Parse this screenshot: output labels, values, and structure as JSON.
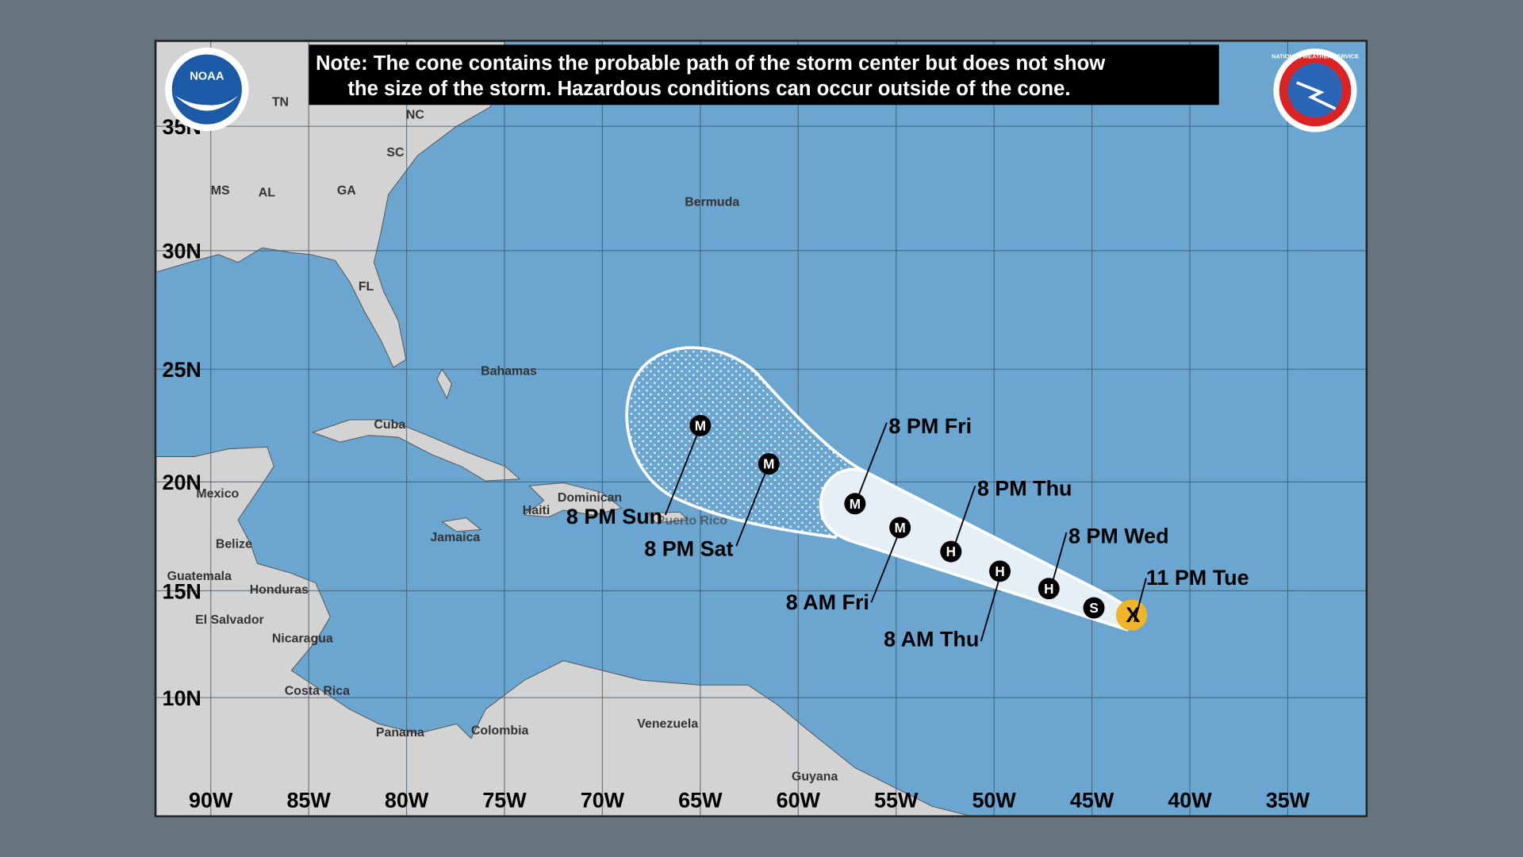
{
  "note": {
    "line1": "Note: The cone contains the probable path of the storm center but does not show",
    "line2": "the size of the storm. Hazardous conditions can occur outside of the cone."
  },
  "logos": {
    "left": "NOAA",
    "right": "NATIONAL WEATHER SERVICE"
  },
  "axes": {
    "longitude": [
      "90W",
      "85W",
      "80W",
      "75W",
      "70W",
      "65W",
      "60W",
      "55W",
      "50W",
      "45W",
      "40W",
      "35W"
    ],
    "latitude": [
      "35N",
      "30N",
      "25N",
      "20N",
      "15N",
      "10N"
    ]
  },
  "places": {
    "states": [
      "TN",
      "NC",
      "SC",
      "MS",
      "AL",
      "GA",
      "FL"
    ],
    "bermuda": "Bermuda",
    "bahamas": "Bahamas",
    "cuba": "Cuba",
    "mexico": "Mexico",
    "belize": "Belize",
    "guatemala": "Guatemala",
    "honduras": "Honduras",
    "el_salvador": "El Salvador",
    "nicaragua": "Nicaragua",
    "costa_rica": "Costa Rica",
    "panama": "Panama",
    "jamaica": "Jamaica",
    "dominican": "Dominican",
    "haiti": "Haiti",
    "puerto_rico": "Puerto Rico",
    "colombia": "Colombia",
    "venezuela": "Venezuela",
    "guyana": "Guyana"
  },
  "colors": {
    "ocean": "#6aa6d0",
    "land": "#d3d3d3",
    "cone": "#e6eef6",
    "current": "#f0b429"
  },
  "track": [
    {
      "time": "11 PM Tue",
      "intensity": "X",
      "lat": 13.9,
      "lon": 42.9
    },
    {
      "time": "",
      "intensity": "S",
      "lat": 14.2,
      "lon": 44.9
    },
    {
      "time": "8 PM Wed",
      "intensity": "H",
      "lat": 15.1,
      "lon": 47.2
    },
    {
      "time": "8 AM Thu",
      "intensity": "H",
      "lat": 15.9,
      "lon": 49.7
    },
    {
      "time": "8 PM Thu",
      "intensity": "H",
      "lat": 16.8,
      "lon": 52.2
    },
    {
      "time": "8 AM Fri",
      "intensity": "M",
      "lat": 17.9,
      "lon": 54.8
    },
    {
      "time": "8 PM Fri",
      "intensity": "M",
      "lat": 19.0,
      "lon": 57.1
    },
    {
      "time": "8 PM Sat",
      "intensity": "M",
      "lat": 20.8,
      "lon": 61.5
    },
    {
      "time": "8 PM Sun",
      "intensity": "M",
      "lat": 22.5,
      "lon": 65.0
    }
  ]
}
